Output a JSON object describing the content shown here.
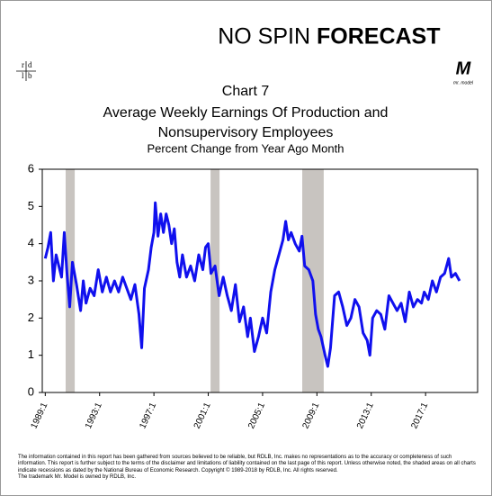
{
  "header": {
    "brand_plain": "NO SPIN",
    "brand_bold": "FORECAST",
    "logo_letters": [
      "r",
      "d",
      "l",
      "b"
    ],
    "mark_letter": "M",
    "mark_caption": "mr. model"
  },
  "chart_data": {
    "type": "line",
    "title_lines": [
      "Chart 7",
      "Average Weekly Earnings Of Production and",
      "Nonsupervisory Employees"
    ],
    "subtitle": "Percent Change from Year Ago Month",
    "x": [
      1989.0,
      1989.2,
      1989.4,
      1989.6,
      1989.8,
      1990.0,
      1990.2,
      1990.4,
      1990.6,
      1990.8,
      1991.0,
      1991.3,
      1991.6,
      1991.8,
      1992.0,
      1992.3,
      1992.6,
      1992.9,
      1993.2,
      1993.5,
      1993.8,
      1994.1,
      1994.4,
      1994.7,
      1995.0,
      1995.3,
      1995.6,
      1995.9,
      1996.1,
      1996.3,
      1996.6,
      1996.8,
      1997.0,
      1997.1,
      1997.3,
      1997.5,
      1997.7,
      1997.9,
      1998.1,
      1998.3,
      1998.5,
      1998.7,
      1998.9,
      1999.1,
      1999.4,
      1999.7,
      2000.0,
      2000.3,
      2000.6,
      2000.8,
      2001.0,
      2001.2,
      2001.5,
      2001.8,
      2002.1,
      2002.4,
      2002.7,
      2003.0,
      2003.3,
      2003.6,
      2003.9,
      2004.1,
      2004.4,
      2004.7,
      2005.0,
      2005.3,
      2005.6,
      2005.9,
      2006.2,
      2006.5,
      2006.7,
      2006.9,
      2007.1,
      2007.4,
      2007.7,
      2007.9,
      2008.1,
      2008.4,
      2008.7,
      2008.9,
      2009.1,
      2009.3,
      2009.6,
      2009.8,
      2010.0,
      2010.3,
      2010.6,
      2010.9,
      2011.2,
      2011.5,
      2011.8,
      2012.1,
      2012.4,
      2012.7,
      2012.9,
      2013.1,
      2013.4,
      2013.7,
      2014.0,
      2014.3,
      2014.6,
      2014.9,
      2015.2,
      2015.5,
      2015.8,
      2016.1,
      2016.4,
      2016.7,
      2016.9,
      2017.2,
      2017.5,
      2017.8,
      2018.1,
      2018.4,
      2018.7,
      2018.9,
      2019.2,
      2019.5
    ],
    "values": [
      3.6,
      3.9,
      4.3,
      3.0,
      3.7,
      3.4,
      3.1,
      4.3,
      3.2,
      2.3,
      3.5,
      2.9,
      2.2,
      3.0,
      2.4,
      2.8,
      2.6,
      3.3,
      2.7,
      3.1,
      2.7,
      3.0,
      2.7,
      3.1,
      2.8,
      2.5,
      2.9,
      2.1,
      1.2,
      2.8,
      3.3,
      3.9,
      4.3,
      5.1,
      4.2,
      4.8,
      4.3,
      4.8,
      4.5,
      4.0,
      4.4,
      3.5,
      3.1,
      3.7,
      3.1,
      3.4,
      3.0,
      3.7,
      3.3,
      3.9,
      4.0,
      3.2,
      3.4,
      2.6,
      3.1,
      2.6,
      2.2,
      2.9,
      1.9,
      2.3,
      1.5,
      2.0,
      1.1,
      1.5,
      2.0,
      1.6,
      2.7,
      3.3,
      3.7,
      4.1,
      4.6,
      4.1,
      4.3,
      4.0,
      3.8,
      4.2,
      3.4,
      3.3,
      3.0,
      2.1,
      1.7,
      1.5,
      1.0,
      0.7,
      1.2,
      2.6,
      2.7,
      2.3,
      1.8,
      2.0,
      2.5,
      2.3,
      1.6,
      1.4,
      1.0,
      2.0,
      2.2,
      2.1,
      1.7,
      2.6,
      2.4,
      2.2,
      2.4,
      1.9,
      2.7,
      2.3,
      2.5,
      2.4,
      2.7,
      2.5,
      3.0,
      2.7,
      3.1,
      3.2,
      3.6,
      3.1,
      3.2,
      3.0
    ],
    "color": "#1010ee",
    "shaded_periods": [
      [
        1990.5,
        1991.17
      ],
      [
        2001.17,
        2001.83
      ],
      [
        2007.92,
        2009.5
      ]
    ],
    "shade_color": "#c8c4c0",
    "xlim": [
      1988.78,
      2020.83
    ],
    "xticks": [
      {
        "value": 1989,
        "label": "1989:1"
      },
      {
        "value": 1993,
        "label": "1993:1"
      },
      {
        "value": 1997,
        "label": "1997:1"
      },
      {
        "value": 2001,
        "label": "2001:1"
      },
      {
        "value": 2005,
        "label": "2005:1"
      },
      {
        "value": 2009,
        "label": "2009:1"
      },
      {
        "value": 2013,
        "label": "2013:1"
      },
      {
        "value": 2017,
        "label": "2017:1"
      }
    ],
    "ylim": [
      0,
      6
    ],
    "yticks": [
      0,
      1,
      2,
      3,
      4,
      5,
      6
    ],
    "grid": false
  },
  "footer": {
    "disclaimer": "The information contained in this report has been gathered from sources believed to be reliable, but RDLB, Inc. makes no representations as to the accuracy or completeness of such information. This report is further subject to the terms of the disclaimer and limitations of liability contained on the last page of this report. Unless otherwise noted, the shaded areas on all charts indicate recessions as dated by the National Bureau of Economic Research. Copyright © 1989-2018 by RDLB, Inc. All rights reserved.",
    "trademark": "The trademark Mr. Model is owned by RDLB, Inc."
  }
}
